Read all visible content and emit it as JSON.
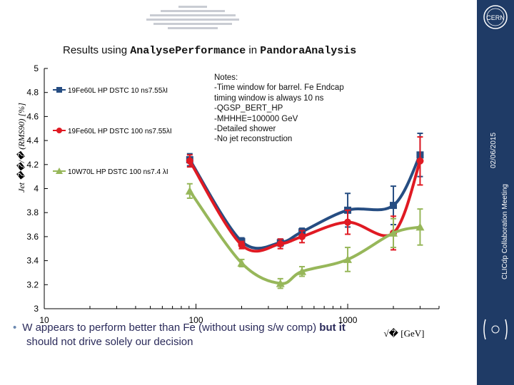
{
  "slide": {
    "title_prefix": "Results using ",
    "title_code_1": "AnalysePerformance",
    "title_mid": " in ",
    "title_code_2": "PandoraAnalysis",
    "side_date": "02/06/2015",
    "side_meeting": "CLICdp Collaboration Meeting",
    "bullet": {
      "part1": "W appears to perform better than Fe (without using s/w comp) ",
      "bold": "but it",
      "part2": "should not drive solely our decision"
    }
  },
  "notes": [
    "Notes:",
    "-Time window for barrel. Fe Endcap",
    " timing window is  always 10 ns",
    "-QGSP_BERT_HP",
    "-MHHHE=100000 GeV",
    "-Detailed shower",
    "-No jet reconstruction"
  ],
  "chart_data": {
    "type": "line",
    "ylabel": "Jet ��/� (RMS90) [%]",
    "xlabel": "√� [GeV]",
    "xscale": "log",
    "xlim": [
      10,
      4000
    ],
    "ylim": [
      3,
      5
    ],
    "x_ticks": [
      "10",
      "100",
      "1000"
    ],
    "y_ticks": [
      "3",
      "3.2",
      "3.4",
      "3.6",
      "3.8",
      "4",
      "4.2",
      "4.4",
      "4.6",
      "4.8",
      "5"
    ],
    "grid": false,
    "legend_position": "left-inline",
    "series": [
      {
        "name": "19Fe60L HP DSTC 10 ns7.55λI",
        "color": "#264d82",
        "marker": "square",
        "x": [
          91,
          200,
          360,
          500,
          1000,
          2000,
          3000
        ],
        "y": [
          4.24,
          3.56,
          3.55,
          3.64,
          3.82,
          3.86,
          4.28
        ],
        "err": [
          0.05,
          0.03,
          0.03,
          0.03,
          0.14,
          0.16,
          0.18
        ]
      },
      {
        "name": "19Fe60L HP DSTC 100 ns7.55λI",
        "color": "#e01a23",
        "marker": "circle",
        "x": [
          91,
          200,
          360,
          500,
          1000,
          2000,
          3000
        ],
        "y": [
          4.23,
          3.53,
          3.54,
          3.6,
          3.72,
          3.63,
          4.23
        ],
        "err": [
          0.05,
          0.03,
          0.04,
          0.05,
          0.1,
          0.14,
          0.2
        ]
      },
      {
        "name": "10W70L HP DSTC 100 ns7.4 λI",
        "color": "#97b75a",
        "marker": "triangle",
        "x": [
          91,
          200,
          360,
          500,
          1000,
          2000,
          3000
        ],
        "y": [
          3.98,
          3.38,
          3.21,
          3.31,
          3.41,
          3.63,
          3.68
        ],
        "err": [
          0.06,
          0.03,
          0.04,
          0.04,
          0.1,
          0.12,
          0.15
        ]
      }
    ]
  }
}
